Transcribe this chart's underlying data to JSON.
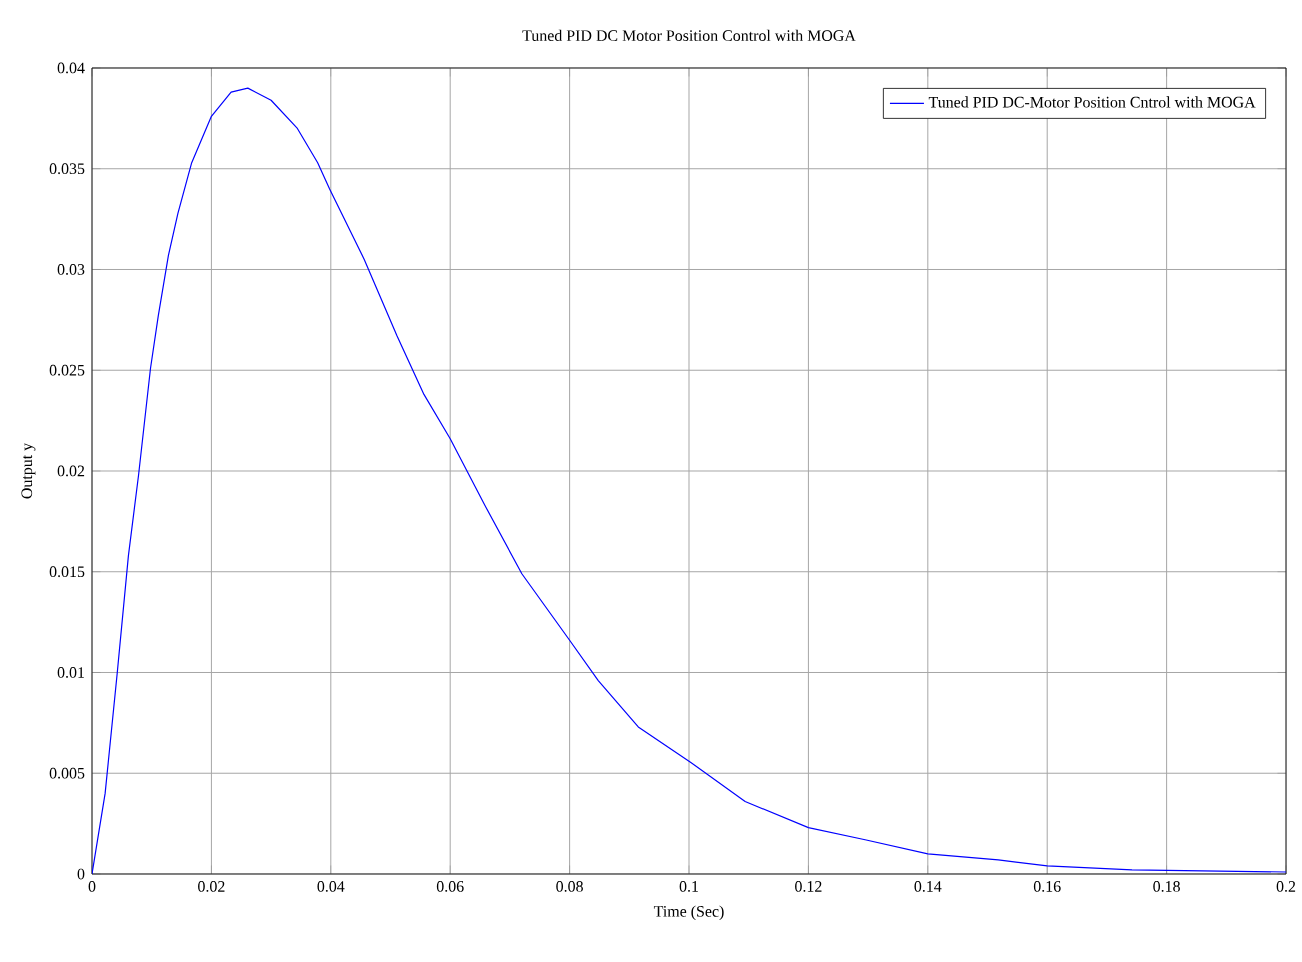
{
  "chart_data": {
    "type": "line",
    "title": "Tuned PID DC Motor Position Control with MOGA",
    "xlabel": "Time (Sec)",
    "ylabel": "Output y",
    "x": [
      0,
      0.0022,
      0.0042,
      0.0061,
      0.0078,
      0.0098,
      0.0111,
      0.0128,
      0.0144,
      0.0167,
      0.02,
      0.0233,
      0.0261,
      0.03,
      0.0344,
      0.0378,
      0.0398,
      0.0456,
      0.0511,
      0.0556,
      0.06,
      0.0658,
      0.072,
      0.08,
      0.0848,
      0.0915,
      0.1,
      0.1094,
      0.12,
      0.1295,
      0.14,
      0.1518,
      0.16,
      0.1742,
      0.2
    ],
    "series": [
      {
        "name": "Tuned PID DC-Motor Position Cntrol with MOGA",
        "color": "#0000ff",
        "values": [
          0,
          0.004,
          0.0099,
          0.0158,
          0.0198,
          0.0251,
          0.0277,
          0.0307,
          0.0328,
          0.0353,
          0.0376,
          0.0388,
          0.039,
          0.0384,
          0.037,
          0.0353,
          0.034,
          0.0305,
          0.0267,
          0.0238,
          0.0216,
          0.0183,
          0.0149,
          0.0116,
          0.0096,
          0.0073,
          0.0056,
          0.0036,
          0.0023,
          0.0017,
          0.001,
          0.0007,
          0.0004,
          0.0002,
          0.0001
        ]
      }
    ],
    "xlim": [
      0,
      0.2
    ],
    "ylim": [
      0,
      0.04
    ],
    "xticks": [
      0,
      0.02,
      0.04,
      0.06,
      0.08,
      0.1,
      0.12,
      0.14,
      0.16,
      0.18,
      0.2
    ],
    "yticks": [
      0,
      0.005,
      0.01,
      0.015,
      0.02,
      0.025,
      0.03,
      0.035,
      0.04
    ],
    "grid": true,
    "legend": "top right"
  }
}
